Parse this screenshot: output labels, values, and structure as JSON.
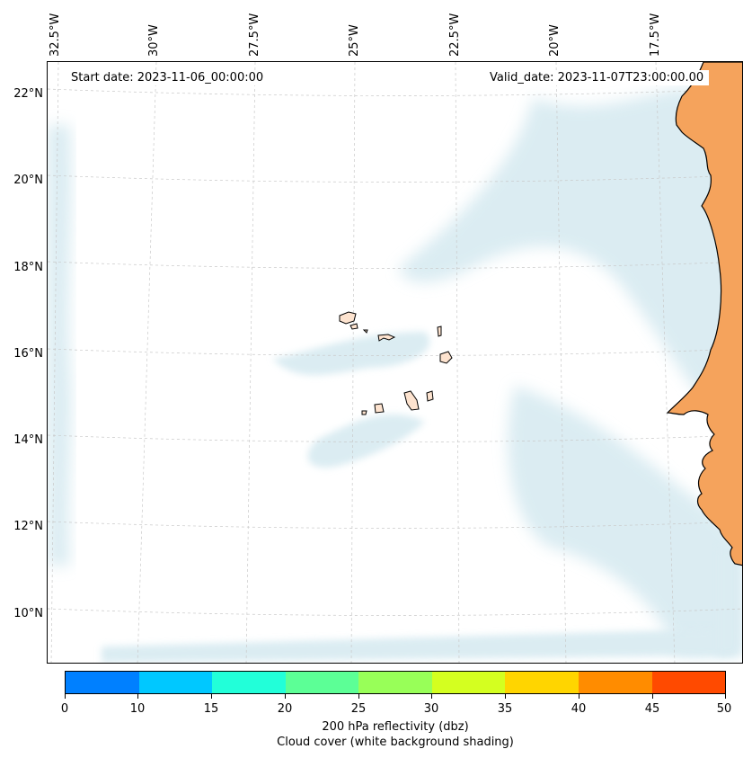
{
  "map": {
    "start_date": "Start date: 2023-11-06_00:00:00",
    "valid_date": "Valid_date: 2023-11-07T23:00:00.00",
    "lon_labels": [
      "32.5°W",
      "30°W",
      "27.5°W",
      "25°W",
      "22.5°W",
      "20°W",
      "17.5°W"
    ],
    "lat_labels": [
      "22°N",
      "20°N",
      "18°N",
      "16°N",
      "14°N",
      "12°N",
      "10°N"
    ],
    "land_color": "#f5a35c",
    "cloud_color": "#cfe6ee"
  },
  "colorbar": {
    "ticks": [
      "0",
      "10",
      "15",
      "20",
      "25",
      "30",
      "35",
      "40",
      "45",
      "50"
    ],
    "colors": [
      "#0080ff",
      "#00c8ff",
      "#22ffd9",
      "#5cff96",
      "#98ff58",
      "#d4ff20",
      "#ffd500",
      "#ff8c00",
      "#ff4a00"
    ],
    "label": "200 hPa reflectivity (dbz)",
    "sublabel": "Cloud cover (white background shading)"
  }
}
